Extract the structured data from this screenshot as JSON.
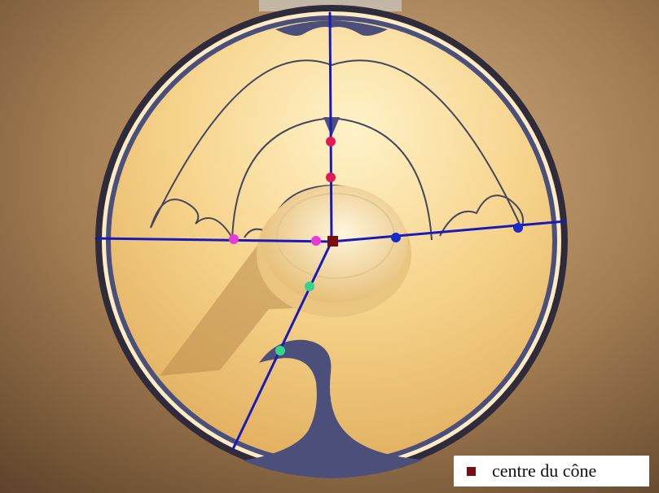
{
  "legend": {
    "label": "centre du cône",
    "color": "#7a0d0d"
  },
  "colors": {
    "wall": "#8a6542",
    "disc": "#f7d58f",
    "rim": "#2f2b3a",
    "decoration": "#4b4f7a",
    "axis_line": "#1a1ab8",
    "markers_vertical": "#e0195a",
    "markers_horizontal_left": "#e83ad6",
    "markers_horizontal_right": "#1a2cc8",
    "markers_diagonal": "#36d48a",
    "centre_marker": "#7a0d0d"
  }
}
